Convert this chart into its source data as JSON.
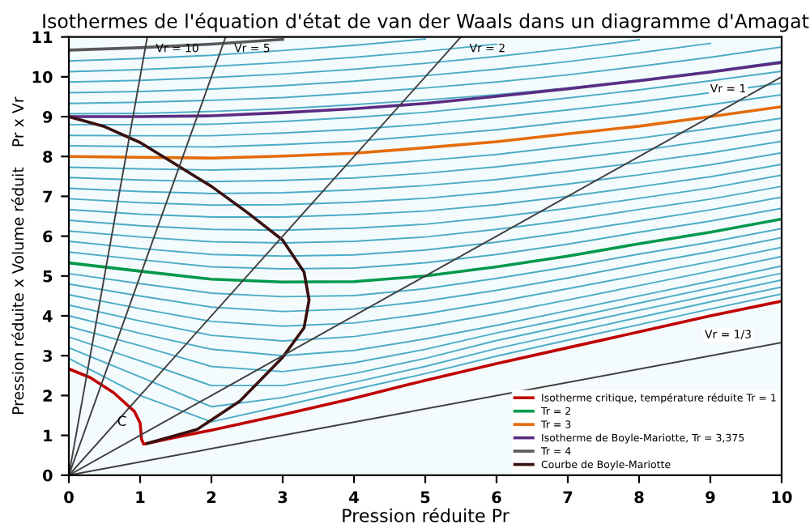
{
  "chart_data": {
    "type": "line",
    "title": "Isothermes de l'équation d'état de van der Waals dans un diagramme d'Amagat",
    "xlabel": "Pression réduite Pr",
    "ylabel": "Pression réduite x Volume réduit    Pr x Vr",
    "x": [
      0,
      1,
      2,
      3,
      4,
      5,
      6,
      7,
      8,
      9,
      10
    ],
    "xlim": [
      0,
      10
    ],
    "ylim": [
      0,
      11
    ],
    "xticks": [
      0,
      1,
      2,
      3,
      4,
      5,
      6,
      7,
      8,
      9,
      10
    ],
    "yticks": [
      0,
      1,
      2,
      3,
      4,
      5,
      6,
      7,
      8,
      9,
      10,
      11
    ],
    "grid": false,
    "legend": "bottom right",
    "marker": "none",
    "line_style": "solid",
    "annotations": [
      {
        "text": "C",
        "x": 1,
        "y": 1
      }
    ],
    "series": [
      {
        "color": "#4bacc6",
        "values": [
          2.93,
          2.0,
          1.34,
          1.74,
          2.15,
          2.55,
          2.99,
          3.39,
          3.78,
          4.17,
          4.55
        ]
      },
      {
        "color": "#4bacc6",
        "values": [
          3.2,
          2.47,
          1.72,
          1.95,
          2.33,
          2.73,
          3.18,
          3.57,
          3.96,
          4.35,
          4.72
        ]
      },
      {
        "color": "#4bacc6",
        "values": [
          3.47,
          2.87,
          2.25,
          2.25,
          2.55,
          2.93,
          3.38,
          3.76,
          4.14,
          4.52,
          4.9
        ]
      },
      {
        "color": "#4bacc6",
        "values": [
          3.73,
          3.25,
          2.73,
          2.6,
          2.82,
          3.16,
          3.57,
          3.94,
          4.32,
          4.7,
          5.07
        ]
      },
      {
        "color": "#4bacc6",
        "values": [
          4.0,
          3.56,
          3.16,
          3.0,
          3.13,
          3.42,
          3.76,
          4.13,
          4.5,
          4.87,
          5.25
        ]
      },
      {
        "color": "#4bacc6",
        "values": [
          4.27,
          3.87,
          3.51,
          3.37,
          3.48,
          3.74,
          4.05,
          4.4,
          4.76,
          5.12,
          5.49
        ]
      },
      {
        "color": "#4bacc6",
        "values": [
          4.53,
          4.18,
          3.86,
          3.74,
          3.82,
          4.05,
          4.35,
          4.68,
          5.02,
          5.36,
          5.72
        ]
      },
      {
        "color": "#4bacc6",
        "values": [
          4.8,
          4.5,
          4.22,
          4.11,
          4.17,
          4.37,
          4.64,
          4.95,
          5.29,
          5.61,
          5.96
        ]
      },
      {
        "color": "#4bacc6",
        "values": [
          5.06,
          4.81,
          4.57,
          4.48,
          4.51,
          4.68,
          4.94,
          5.23,
          5.55,
          5.85,
          6.19
        ]
      },
      {
        "color": "#4bacc6",
        "values": [
          5.6,
          5.41,
          5.23,
          5.18,
          5.2,
          5.33,
          5.54,
          5.8,
          6.1,
          6.38,
          6.7
        ]
      },
      {
        "color": "#4bacc6",
        "values": [
          5.87,
          5.69,
          5.54,
          5.5,
          5.53,
          5.65,
          5.85,
          6.1,
          6.38,
          6.66,
          6.98
        ]
      },
      {
        "color": "#4bacc6",
        "values": [
          6.13,
          5.98,
          5.86,
          5.83,
          5.87,
          5.98,
          6.17,
          6.4,
          6.67,
          6.93,
          7.25
        ]
      },
      {
        "color": "#4bacc6",
        "values": [
          6.4,
          6.26,
          6.17,
          6.15,
          6.2,
          6.3,
          6.48,
          6.7,
          6.95,
          7.21,
          7.53
        ]
      },
      {
        "color": "#4bacc6",
        "values": [
          6.67,
          6.55,
          6.48,
          6.48,
          6.54,
          6.63,
          6.79,
          7.0,
          7.24,
          7.49,
          7.8
        ]
      },
      {
        "color": "#4bacc6",
        "values": [
          6.94,
          6.84,
          6.78,
          6.79,
          6.85,
          6.95,
          7.11,
          7.31,
          7.54,
          7.79,
          8.09
        ]
      },
      {
        "color": "#4bacc6",
        "values": [
          7.2,
          7.12,
          7.07,
          7.09,
          7.16,
          7.27,
          7.42,
          7.63,
          7.85,
          8.09,
          8.38
        ]
      },
      {
        "color": "#4bacc6",
        "values": [
          7.47,
          7.41,
          7.37,
          7.4,
          7.46,
          7.58,
          7.74,
          7.94,
          8.15,
          8.4,
          8.67
        ]
      },
      {
        "color": "#4bacc6",
        "values": [
          7.73,
          7.69,
          7.66,
          7.7,
          7.77,
          7.9,
          8.05,
          8.26,
          8.46,
          8.7,
          8.96
        ]
      },
      {
        "color": "#4bacc6",
        "values": [
          8.27,
          8.25,
          8.24,
          8.3,
          8.38,
          8.52,
          8.67,
          8.87,
          9.06,
          9.3,
          9.55
        ]
      },
      {
        "color": "#4bacc6",
        "values": [
          8.53,
          8.52,
          8.52,
          8.59,
          8.68,
          8.81,
          8.98,
          9.17,
          9.37,
          9.6,
          9.84
        ]
      },
      {
        "color": "#4bacc6",
        "values": [
          8.8,
          8.8,
          8.81,
          8.88,
          8.98,
          9.11,
          9.28,
          9.47,
          9.67,
          9.9,
          10.14
        ]
      },
      {
        "color": "#4bacc6",
        "values": [
          9.07,
          9.08,
          9.13,
          9.2,
          9.3,
          9.42,
          9.55,
          9.72,
          9.92,
          10.14,
          10.39
        ]
      },
      {
        "color": "#4bacc6",
        "values": [
          9.33,
          9.36,
          9.41,
          9.48,
          9.59,
          9.72,
          9.87,
          10.05,
          10.26,
          10.49,
          10.75
        ]
      },
      {
        "color": "#4bacc6",
        "values": [
          9.6,
          9.63,
          9.69,
          9.78,
          9.89,
          10.03,
          10.19,
          10.38,
          10.6,
          10.84,
          null
        ]
      },
      {
        "color": "#4bacc6",
        "values": [
          9.87,
          9.91,
          9.98,
          10.07,
          10.19,
          10.34,
          10.51,
          10.71,
          10.93,
          null,
          null
        ]
      },
      {
        "color": "#4bacc6",
        "values": [
          10.13,
          10.18,
          10.26,
          10.36,
          10.49,
          10.64,
          10.82,
          null,
          null,
          null,
          null
        ]
      },
      {
        "color": "#4bacc6",
        "values": [
          10.4,
          10.46,
          10.54,
          10.66,
          10.79,
          10.95,
          null,
          null,
          null,
          null,
          null
        ]
      },
      {
        "name": "Isotherme critique, température réduite Tr = 1",
        "color": "#c00000",
        "x": [
          0,
          0.3,
          0.63,
          0.92,
          1.0,
          1.02,
          1.05,
          1.5,
          2,
          3,
          4,
          5,
          6,
          7,
          8,
          9,
          10
        ],
        "values": [
          2.67,
          2.45,
          2.07,
          1.6,
          1.31,
          0.9,
          0.78,
          0.95,
          1.13,
          1.52,
          1.93,
          2.38,
          2.8,
          3.2,
          3.6,
          4.0,
          4.37
        ]
      },
      {
        "name": "Tr = 2",
        "color": "#00994c",
        "values": [
          5.33,
          5.12,
          4.92,
          4.85,
          4.86,
          5.0,
          5.23,
          5.5,
          5.81,
          6.1,
          6.43
        ]
      },
      {
        "name": "Tr = 3",
        "color": "#e46c0a",
        "values": [
          8.0,
          7.98,
          7.96,
          8.01,
          8.08,
          8.22,
          8.37,
          8.57,
          8.76,
          9.0,
          9.25
        ]
      },
      {
        "name": "Isotherme de Boyle-Mariotte, Tr = 3,375",
        "color": "#5b2c83",
        "values": [
          9.0,
          9.0,
          9.02,
          9.1,
          9.2,
          9.33,
          9.51,
          9.7,
          9.9,
          10.12,
          10.36
        ]
      },
      {
        "name": "Tr = 4",
        "color": "#595959",
        "values": [
          10.67,
          10.73,
          10.82,
          10.94,
          null,
          null,
          null,
          null,
          null,
          null,
          null
        ]
      },
      {
        "name": "Courbe de Boyle-Mariotte",
        "color": "#3a1010",
        "x": [
          0,
          0.5,
          1,
          1.5,
          2,
          2.5,
          3,
          3.3,
          3.37,
          3.3,
          3.0,
          2.4,
          1.8,
          1.1
        ],
        "values": [
          9,
          8.75,
          8.35,
          7.8,
          7.25,
          6.6,
          5.9,
          5.1,
          4.4,
          3.7,
          2.96,
          1.86,
          1.15,
          0.8
        ]
      },
      {
        "name": "Vr = 10",
        "color": "#404040",
        "x": [
          0,
          1.1
        ],
        "values": [
          0,
          11
        ]
      },
      {
        "name": "Vr = 5",
        "color": "#404040",
        "x": [
          0,
          2.2
        ],
        "values": [
          0,
          11
        ]
      },
      {
        "name": "Vr = 2",
        "color": "#404040",
        "x": [
          0,
          5.5
        ],
        "values": [
          0,
          11
        ]
      },
      {
        "name": "Vr = 1",
        "color": "#404040",
        "x": [
          0,
          10
        ],
        "values": [
          0,
          10
        ]
      },
      {
        "name": "Vr = 1/3",
        "color": "#404040",
        "x": [
          0,
          10
        ],
        "values": [
          0,
          3.33
        ]
      }
    ]
  }
}
